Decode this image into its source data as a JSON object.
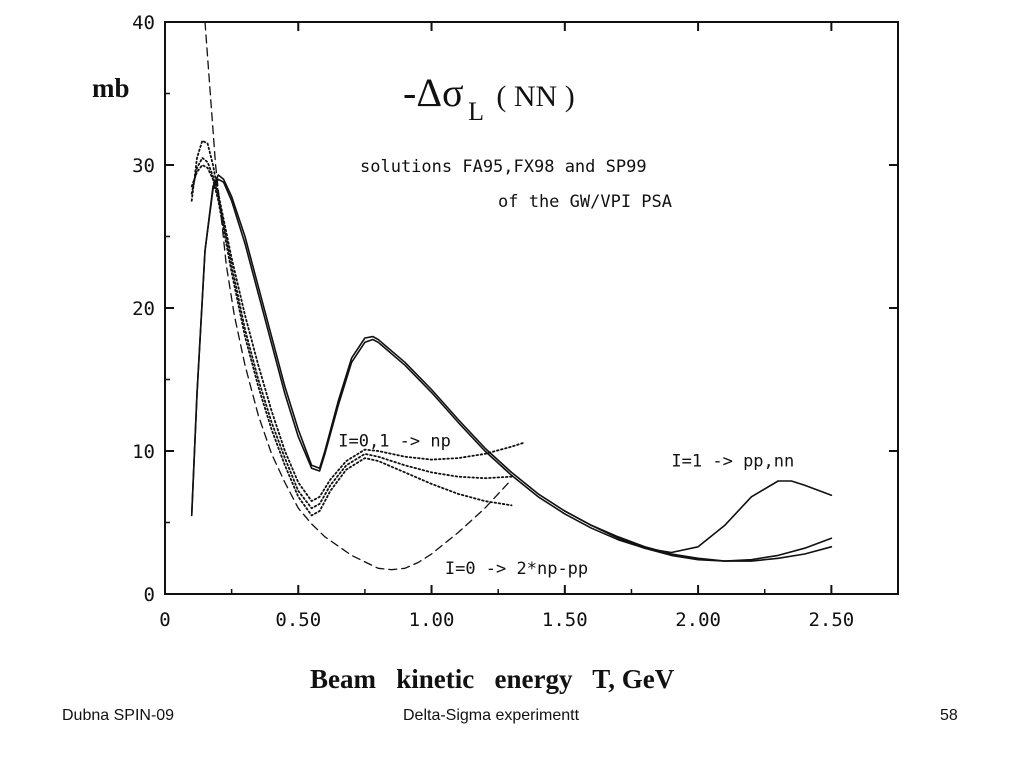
{
  "chart_data": {
    "type": "line",
    "ylabel": "mb",
    "xlabel": "Beam   kinetic   energy   T, GeV",
    "title": {
      "main": "-Δσ",
      "subscript": "L",
      "paren": "( NN )"
    },
    "subtitle_line1": "solutions FA95,FX98 and SP99",
    "subtitle_line2": "of the GW/VPI PSA",
    "xlim": [
      0,
      2.75
    ],
    "ylim": [
      0,
      40
    ],
    "x_ticks": [
      {
        "value": 0,
        "label": "0"
      },
      {
        "value": 0.5,
        "label": "0.50"
      },
      {
        "value": 1.0,
        "label": "1.00"
      },
      {
        "value": 1.5,
        "label": "1.50"
      },
      {
        "value": 2.0,
        "label": "2.00"
      },
      {
        "value": 2.5,
        "label": "2.50"
      }
    ],
    "y_ticks": [
      {
        "value": 0,
        "label": "0"
      },
      {
        "value": 10,
        "label": "10"
      },
      {
        "value": 20,
        "label": "20"
      },
      {
        "value": 30,
        "label": "30"
      },
      {
        "value": 40,
        "label": "40"
      }
    ],
    "annotations": [
      {
        "text": "I=0,1 -> np",
        "x": 0.65,
        "y": 10.3
      },
      {
        "text": "I=1 -> pp,nn",
        "x": 1.9,
        "y": 8.9
      },
      {
        "text": "I=0 -> 2*np-pp",
        "x": 1.05,
        "y": 1.4
      }
    ],
    "series": [
      {
        "group": "I=1 -> pp,nn",
        "style": "solid",
        "x": [
          0.1,
          0.12,
          0.15,
          0.18,
          0.2,
          0.22,
          0.25,
          0.3,
          0.35,
          0.4,
          0.45,
          0.5,
          0.55,
          0.58,
          0.6,
          0.65,
          0.7,
          0.75,
          0.78,
          0.8,
          0.9,
          1.0,
          1.1,
          1.2,
          1.3,
          1.4,
          1.5,
          1.6,
          1.7,
          1.8,
          1.9,
          2.0,
          2.1,
          2.2,
          2.3,
          2.4,
          2.5
        ],
        "values": [
          5.5,
          14,
          24,
          28.5,
          29.3,
          29.0,
          27.8,
          25.0,
          21.5,
          18.0,
          14.5,
          11.5,
          9.0,
          8.8,
          10.0,
          13.5,
          16.5,
          17.9,
          18.0,
          17.8,
          16.2,
          14.3,
          12.2,
          10.2,
          8.5,
          7.0,
          5.8,
          4.8,
          4.0,
          3.3,
          2.8,
          2.5,
          2.3,
          2.3,
          2.5,
          2.8,
          3.3
        ]
      },
      {
        "group": "I=1 -> pp,nn",
        "style": "solid",
        "x": [
          0.1,
          0.12,
          0.15,
          0.18,
          0.2,
          0.22,
          0.25,
          0.3,
          0.35,
          0.4,
          0.45,
          0.5,
          0.55,
          0.58,
          0.6,
          0.65,
          0.7,
          0.75,
          0.78,
          0.8,
          0.9,
          1.0,
          1.1,
          1.2,
          1.3,
          1.4,
          1.5,
          1.6,
          1.7,
          1.8,
          1.9,
          2.0,
          2.1,
          2.2,
          2.3,
          2.4,
          2.5
        ],
        "values": [
          5.5,
          14,
          24,
          28.3,
          29.0,
          28.8,
          27.5,
          24.5,
          21.0,
          17.5,
          14.0,
          11.0,
          8.8,
          8.6,
          9.8,
          13.2,
          16.2,
          17.6,
          17.8,
          17.6,
          16.0,
          14.1,
          12.0,
          10.0,
          8.3,
          6.8,
          5.6,
          4.6,
          3.8,
          3.2,
          2.7,
          2.4,
          2.3,
          2.4,
          2.7,
          3.2,
          3.9
        ]
      },
      {
        "group": "I=1 -> pp,nn",
        "style": "solid",
        "x": [
          1.5,
          1.6,
          1.7,
          1.8,
          1.9,
          2.0,
          2.1,
          2.2,
          2.3,
          2.35,
          2.4,
          2.5
        ],
        "values": [
          5.8,
          4.8,
          3.9,
          3.2,
          2.9,
          3.3,
          4.8,
          6.8,
          7.9,
          7.9,
          7.6,
          6.9
        ]
      },
      {
        "group": "I=0,1 -> np",
        "style": "dotted",
        "x": [
          0.1,
          0.12,
          0.14,
          0.16,
          0.18,
          0.2,
          0.25,
          0.3,
          0.35,
          0.4,
          0.45,
          0.5,
          0.55,
          0.58,
          0.62,
          0.68,
          0.75,
          0.8,
          0.9,
          1.0,
          1.1,
          1.2,
          1.3,
          1.35
        ],
        "values": [
          27.5,
          30.5,
          31.7,
          31.5,
          30.0,
          28.0,
          23.5,
          19.5,
          16.0,
          12.8,
          10.0,
          7.8,
          6.5,
          6.8,
          8.0,
          9.3,
          10.1,
          10.0,
          9.6,
          9.4,
          9.5,
          9.8,
          10.3,
          10.6
        ]
      },
      {
        "group": "I=0,1 -> np",
        "style": "dotted",
        "x": [
          0.1,
          0.12,
          0.14,
          0.16,
          0.18,
          0.2,
          0.25,
          0.3,
          0.35,
          0.4,
          0.45,
          0.5,
          0.55,
          0.58,
          0.62,
          0.68,
          0.75,
          0.8,
          0.9,
          1.0,
          1.1,
          1.2,
          1.3
        ],
        "values": [
          28.0,
          29.8,
          30.5,
          30.2,
          29.2,
          27.8,
          23.0,
          18.5,
          15.0,
          12.0,
          9.5,
          7.2,
          6.0,
          6.3,
          7.6,
          9.0,
          9.8,
          9.6,
          9.0,
          8.5,
          8.2,
          8.1,
          8.2
        ]
      },
      {
        "group": "I=0,1 -> np",
        "style": "dotted",
        "x": [
          0.1,
          0.12,
          0.14,
          0.16,
          0.18,
          0.2,
          0.25,
          0.3,
          0.35,
          0.4,
          0.45,
          0.5,
          0.55,
          0.58,
          0.62,
          0.68,
          0.75,
          0.8,
          0.9,
          1.0,
          1.1,
          1.2,
          1.3
        ],
        "values": [
          28.5,
          29.5,
          30.0,
          29.8,
          29.0,
          27.5,
          22.5,
          18.0,
          14.5,
          11.5,
          9.0,
          6.8,
          5.5,
          5.8,
          7.2,
          8.7,
          9.5,
          9.3,
          8.5,
          7.7,
          7.0,
          6.5,
          6.2
        ]
      },
      {
        "group": "I=0 -> 2*np-pp",
        "style": "dashed",
        "x": [
          0.15,
          0.17,
          0.19,
          0.21,
          0.23,
          0.26,
          0.3,
          0.35,
          0.4,
          0.45,
          0.5,
          0.55,
          0.6,
          0.7,
          0.8,
          0.85,
          0.9,
          0.95,
          1.0,
          1.1,
          1.2,
          1.3
        ],
        "values": [
          40.0,
          35.0,
          30.0,
          26.5,
          23.0,
          19.5,
          16.0,
          12.5,
          9.8,
          7.8,
          6.0,
          4.9,
          4.0,
          2.7,
          1.8,
          1.7,
          1.8,
          2.2,
          2.8,
          4.3,
          6.0,
          8.0
        ]
      }
    ]
  },
  "footer": {
    "left": "Dubna SPIN-09",
    "center": "Delta-Sigma experimentt",
    "right": "58"
  }
}
